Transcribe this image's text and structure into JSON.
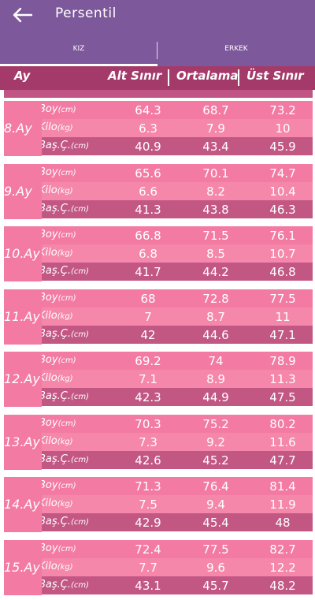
{
  "app": {
    "title": "Persentil"
  },
  "tabs": {
    "left": "KIZ",
    "right": "ERKEK"
  },
  "table": {
    "headers": {
      "month": "Ay",
      "lower": "Alt Sınır",
      "mean": "Ortalama",
      "upper": "Üst Sınır"
    },
    "labels": {
      "height": "Boy",
      "height_unit": "(cm)",
      "weight": "Kilo",
      "weight_unit": "(kg)",
      "head": "Baş.Ç.",
      "head_unit": "(cm)"
    },
    "months": [
      {
        "label": "8.Ay",
        "boy": [
          "64.3",
          "68.7",
          "73.2"
        ],
        "kilo": [
          "6.3",
          "7.9",
          "10"
        ],
        "bas": [
          "40.9",
          "43.4",
          "45.9"
        ]
      },
      {
        "label": "9.Ay",
        "boy": [
          "65.6",
          "70.1",
          "74.7"
        ],
        "kilo": [
          "6.6",
          "8.2",
          "10.4"
        ],
        "bas": [
          "41.3",
          "43.8",
          "46.3"
        ]
      },
      {
        "label": "10.Ay",
        "boy": [
          "66.8",
          "71.5",
          "76.1"
        ],
        "kilo": [
          "6.8",
          "8.5",
          "10.7"
        ],
        "bas": [
          "41.7",
          "44.2",
          "46.8"
        ]
      },
      {
        "label": "11.Ay",
        "boy": [
          "68",
          "72.8",
          "77.5"
        ],
        "kilo": [
          "7",
          "8.7",
          "11"
        ],
        "bas": [
          "42",
          "44.6",
          "47.1"
        ]
      },
      {
        "label": "12.Ay",
        "boy": [
          "69.2",
          "74",
          "78.9"
        ],
        "kilo": [
          "7.1",
          "8.9",
          "11.3"
        ],
        "bas": [
          "42.3",
          "44.9",
          "47.5"
        ]
      },
      {
        "label": "13.Ay",
        "boy": [
          "70.3",
          "75.2",
          "80.2"
        ],
        "kilo": [
          "7.3",
          "9.2",
          "11.6"
        ],
        "bas": [
          "42.6",
          "45.2",
          "47.7"
        ]
      },
      {
        "label": "14.Ay",
        "boy": [
          "71.3",
          "76.4",
          "81.4"
        ],
        "kilo": [
          "7.5",
          "9.4",
          "11.9"
        ],
        "bas": [
          "42.9",
          "45.4",
          "48"
        ]
      },
      {
        "label": "15.Ay",
        "boy": [
          "72.4",
          "77.5",
          "82.7"
        ],
        "kilo": [
          "7.7",
          "9.6",
          "12.2"
        ],
        "bas": [
          "43.1",
          "45.7",
          "48.2"
        ]
      }
    ]
  },
  "colors": {
    "primary": "#7d589a",
    "header": "#a43a6a",
    "row_light": "#f37ba3",
    "row_mid": "#f587ab",
    "row_dark": "#c25784"
  },
  "icons": {
    "back": "arrow-left-icon"
  }
}
